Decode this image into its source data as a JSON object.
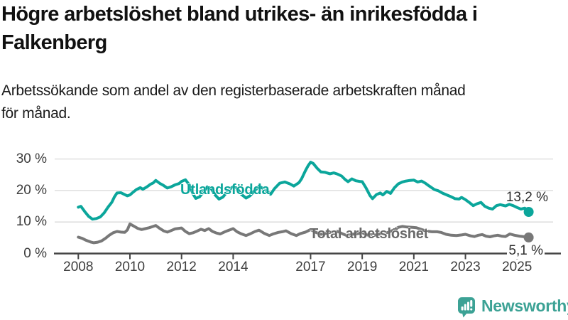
{
  "header": {
    "title": "Högre arbetslöshet bland utrikes- än inrikesfödda i Falkenberg",
    "title_lines": [
      "Högre arbetslöshet bland utrikes- än inrikesfödda i",
      "Falkenberg"
    ],
    "subtitle": "Arbetssökande som andel av den registerbaserade arbetskraften månad för månad.",
    "subtitle_lines": [
      "Arbetssökande som andel av den registerbaserade arbetskraften månad",
      "för månad."
    ]
  },
  "chart_data": {
    "type": "line",
    "title": "Högre arbetslöshet bland utrikes- än inrikesfödda i Falkenberg",
    "subtitle": "Arbetssökande som andel av den registerbaserade arbetskraften månad för månad.",
    "unit": "%",
    "grid": true,
    "x_range": [
      2008,
      2025.5
    ],
    "ylim": [
      0,
      30
    ],
    "x_ticks": [
      "2008",
      "2010",
      "2012",
      "2014",
      "2017",
      "2019",
      "2021",
      "2023",
      "2025"
    ],
    "y_ticks": [
      {
        "v": 0,
        "label": "0 %"
      },
      {
        "v": 10,
        "label": "10 %"
      },
      {
        "v": 20,
        "label": "20 %"
      },
      {
        "v": 30,
        "label": "30 %"
      }
    ],
    "colors": {
      "accent_teal": "#0ba69b",
      "neutral_gray": "#787878",
      "grid": "#d9d9d9",
      "axis": "#454545"
    },
    "series": [
      {
        "name": "Utlandsfödda",
        "color": "#0ba69b",
        "label_color": "#0ba69b",
        "end_label": "13,2 %",
        "end_value": 13.2,
        "points": [
          [
            2008.0,
            14.7
          ],
          [
            2008.1,
            15.0
          ],
          [
            2008.25,
            13.3
          ],
          [
            2008.4,
            11.8
          ],
          [
            2008.55,
            10.9
          ],
          [
            2008.7,
            11.1
          ],
          [
            2008.85,
            11.6
          ],
          [
            2009.0,
            12.9
          ],
          [
            2009.15,
            14.7
          ],
          [
            2009.3,
            16.3
          ],
          [
            2009.4,
            18.0
          ],
          [
            2009.5,
            19.2
          ],
          [
            2009.65,
            19.3
          ],
          [
            2009.8,
            18.7
          ],
          [
            2009.9,
            18.3
          ],
          [
            2010.0,
            18.6
          ],
          [
            2010.1,
            19.3
          ],
          [
            2010.25,
            20.3
          ],
          [
            2010.4,
            20.9
          ],
          [
            2010.5,
            20.4
          ],
          [
            2010.65,
            21.1
          ],
          [
            2010.8,
            22.0
          ],
          [
            2010.9,
            22.4
          ],
          [
            2011.0,
            23.2
          ],
          [
            2011.15,
            22.3
          ],
          [
            2011.3,
            21.6
          ],
          [
            2011.45,
            20.8
          ],
          [
            2011.6,
            21.2
          ],
          [
            2011.75,
            21.8
          ],
          [
            2011.9,
            22.2
          ],
          [
            2012.0,
            22.9
          ],
          [
            2012.15,
            23.4
          ],
          [
            2012.3,
            21.8
          ],
          [
            2012.45,
            18.8
          ],
          [
            2012.55,
            17.5
          ],
          [
            2012.7,
            18.0
          ],
          [
            2012.85,
            19.6
          ],
          [
            2013.0,
            21.2
          ],
          [
            2013.15,
            20.6
          ],
          [
            2013.3,
            18.6
          ],
          [
            2013.45,
            17.3
          ],
          [
            2013.6,
            17.9
          ],
          [
            2013.8,
            19.9
          ],
          [
            2014.0,
            21.3
          ],
          [
            2014.15,
            20.7
          ],
          [
            2014.3,
            18.9
          ],
          [
            2014.5,
            17.6
          ],
          [
            2014.65,
            18.3
          ],
          [
            2014.85,
            20.1
          ],
          [
            2015.0,
            21.4
          ],
          [
            2015.2,
            20.4
          ],
          [
            2015.45,
            18.8
          ],
          [
            2015.6,
            20.6
          ],
          [
            2015.8,
            22.3
          ],
          [
            2016.0,
            22.7
          ],
          [
            2016.2,
            22.1
          ],
          [
            2016.35,
            21.4
          ],
          [
            2016.55,
            22.5
          ],
          [
            2016.65,
            23.7
          ],
          [
            2016.8,
            26.3
          ],
          [
            2016.9,
            27.8
          ],
          [
            2017.0,
            29.0
          ],
          [
            2017.1,
            28.6
          ],
          [
            2017.25,
            27.1
          ],
          [
            2017.4,
            25.9
          ],
          [
            2017.55,
            25.8
          ],
          [
            2017.75,
            25.3
          ],
          [
            2017.9,
            25.6
          ],
          [
            2018.05,
            25.2
          ],
          [
            2018.2,
            24.6
          ],
          [
            2018.35,
            23.4
          ],
          [
            2018.45,
            22.8
          ],
          [
            2018.6,
            23.7
          ],
          [
            2018.75,
            23.1
          ],
          [
            2018.9,
            22.9
          ],
          [
            2019.0,
            22.8
          ],
          [
            2019.15,
            20.8
          ],
          [
            2019.3,
            18.4
          ],
          [
            2019.4,
            17.4
          ],
          [
            2019.55,
            18.7
          ],
          [
            2019.7,
            19.2
          ],
          [
            2019.8,
            18.6
          ],
          [
            2019.95,
            19.7
          ],
          [
            2020.1,
            19.1
          ],
          [
            2020.25,
            20.9
          ],
          [
            2020.4,
            22.1
          ],
          [
            2020.55,
            22.7
          ],
          [
            2020.7,
            23.0
          ],
          [
            2020.85,
            23.2
          ],
          [
            2021.0,
            23.3
          ],
          [
            2021.15,
            22.7
          ],
          [
            2021.3,
            23.0
          ],
          [
            2021.45,
            22.3
          ],
          [
            2021.6,
            21.4
          ],
          [
            2021.8,
            20.3
          ],
          [
            2021.95,
            19.9
          ],
          [
            2022.1,
            19.2
          ],
          [
            2022.3,
            18.5
          ],
          [
            2022.45,
            18.0
          ],
          [
            2022.6,
            17.4
          ],
          [
            2022.75,
            17.3
          ],
          [
            2022.85,
            17.8
          ],
          [
            2023.0,
            17.1
          ],
          [
            2023.15,
            16.2
          ],
          [
            2023.3,
            15.2
          ],
          [
            2023.45,
            15.8
          ],
          [
            2023.6,
            16.2
          ],
          [
            2023.75,
            15.0
          ],
          [
            2023.9,
            14.4
          ],
          [
            2024.05,
            14.1
          ],
          [
            2024.2,
            15.2
          ],
          [
            2024.35,
            15.5
          ],
          [
            2024.55,
            15.1
          ],
          [
            2024.7,
            15.6
          ],
          [
            2024.85,
            15.2
          ],
          [
            2025.0,
            14.6
          ],
          [
            2025.15,
            14.1
          ],
          [
            2025.3,
            14.4
          ],
          [
            2025.45,
            13.2
          ]
        ]
      },
      {
        "name": "Total arbetslöshet",
        "color": "#787878",
        "label_color": "#696969",
        "end_label": "5,1 %",
        "end_value": 5.1,
        "points": [
          [
            2008.0,
            5.2
          ],
          [
            2008.15,
            4.8
          ],
          [
            2008.3,
            4.2
          ],
          [
            2008.5,
            3.6
          ],
          [
            2008.6,
            3.4
          ],
          [
            2008.75,
            3.6
          ],
          [
            2008.9,
            4.0
          ],
          [
            2009.05,
            4.8
          ],
          [
            2009.2,
            5.8
          ],
          [
            2009.35,
            6.6
          ],
          [
            2009.5,
            7.0
          ],
          [
            2009.65,
            6.8
          ],
          [
            2009.8,
            6.7
          ],
          [
            2009.9,
            7.5
          ],
          [
            2010.0,
            9.4
          ],
          [
            2010.15,
            8.7
          ],
          [
            2010.3,
            8.0
          ],
          [
            2010.45,
            7.6
          ],
          [
            2010.6,
            7.9
          ],
          [
            2010.75,
            8.2
          ],
          [
            2010.9,
            8.6
          ],
          [
            2011.0,
            8.9
          ],
          [
            2011.15,
            8.0
          ],
          [
            2011.3,
            7.2
          ],
          [
            2011.45,
            6.8
          ],
          [
            2011.6,
            7.3
          ],
          [
            2011.75,
            7.8
          ],
          [
            2011.9,
            8.0
          ],
          [
            2012.0,
            8.1
          ],
          [
            2012.15,
            7.0
          ],
          [
            2012.3,
            6.3
          ],
          [
            2012.45,
            6.6
          ],
          [
            2012.6,
            7.1
          ],
          [
            2012.75,
            7.7
          ],
          [
            2012.9,
            7.3
          ],
          [
            2013.05,
            7.9
          ],
          [
            2013.2,
            7.0
          ],
          [
            2013.35,
            6.5
          ],
          [
            2013.5,
            6.2
          ],
          [
            2013.65,
            6.8
          ],
          [
            2013.8,
            7.3
          ],
          [
            2014.0,
            7.9
          ],
          [
            2014.15,
            6.9
          ],
          [
            2014.3,
            6.3
          ],
          [
            2014.5,
            5.7
          ],
          [
            2014.65,
            6.2
          ],
          [
            2014.85,
            7.0
          ],
          [
            2015.0,
            7.4
          ],
          [
            2015.2,
            6.4
          ],
          [
            2015.4,
            5.7
          ],
          [
            2015.55,
            6.2
          ],
          [
            2015.75,
            6.7
          ],
          [
            2015.9,
            6.9
          ],
          [
            2016.05,
            7.2
          ],
          [
            2016.25,
            6.3
          ],
          [
            2016.45,
            5.7
          ],
          [
            2016.6,
            6.3
          ],
          [
            2016.8,
            6.8
          ],
          [
            2017.0,
            7.6
          ],
          [
            2017.2,
            6.7
          ],
          [
            2017.4,
            6.1
          ],
          [
            2017.55,
            6.3
          ],
          [
            2017.75,
            6.7
          ],
          [
            2017.9,
            6.9
          ],
          [
            2018.05,
            7.0
          ],
          [
            2018.25,
            6.2
          ],
          [
            2018.4,
            5.7
          ],
          [
            2018.6,
            6.1
          ],
          [
            2018.8,
            6.3
          ],
          [
            2019.0,
            6.6
          ],
          [
            2019.2,
            5.9
          ],
          [
            2019.4,
            5.6
          ],
          [
            2019.6,
            6.1
          ],
          [
            2019.8,
            6.3
          ],
          [
            2020.0,
            6.7
          ],
          [
            2020.2,
            7.4
          ],
          [
            2020.4,
            8.3
          ],
          [
            2020.55,
            8.6
          ],
          [
            2020.75,
            8.4
          ],
          [
            2020.95,
            8.3
          ],
          [
            2021.1,
            8.2
          ],
          [
            2021.3,
            7.6
          ],
          [
            2021.5,
            7.1
          ],
          [
            2021.7,
            6.9
          ],
          [
            2021.9,
            6.9
          ],
          [
            2022.05,
            6.7
          ],
          [
            2022.25,
            6.1
          ],
          [
            2022.45,
            5.8
          ],
          [
            2022.65,
            5.7
          ],
          [
            2022.85,
            5.9
          ],
          [
            2023.0,
            6.1
          ],
          [
            2023.2,
            5.6
          ],
          [
            2023.35,
            5.4
          ],
          [
            2023.5,
            5.8
          ],
          [
            2023.65,
            6.0
          ],
          [
            2023.8,
            5.5
          ],
          [
            2023.95,
            5.3
          ],
          [
            2024.1,
            5.6
          ],
          [
            2024.25,
            5.8
          ],
          [
            2024.4,
            5.5
          ],
          [
            2024.55,
            5.4
          ],
          [
            2024.72,
            6.2
          ],
          [
            2024.9,
            5.8
          ],
          [
            2025.1,
            5.5
          ],
          [
            2025.3,
            5.3
          ],
          [
            2025.45,
            5.1
          ]
        ]
      }
    ]
  },
  "footer": {
    "brand": "Newsworthy",
    "brand_color": "#3ca295"
  }
}
